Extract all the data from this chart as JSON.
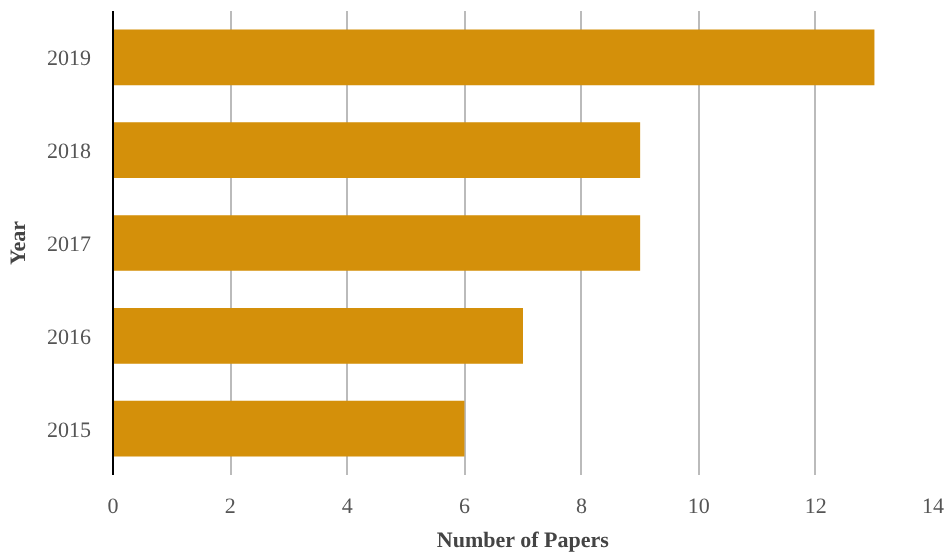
{
  "chart_data": {
    "type": "bar",
    "orientation": "horizontal",
    "categories": [
      "2019",
      "2018",
      "2017",
      "2016",
      "2015"
    ],
    "values": [
      13,
      9,
      9,
      7,
      6
    ],
    "color": "#d4900a",
    "xlabel": "Number of Papers",
    "ylabel": "Year",
    "xlim": [
      0,
      14
    ],
    "xticks": [
      0,
      2,
      4,
      6,
      8,
      10,
      12,
      14
    ],
    "grid": "x"
  }
}
